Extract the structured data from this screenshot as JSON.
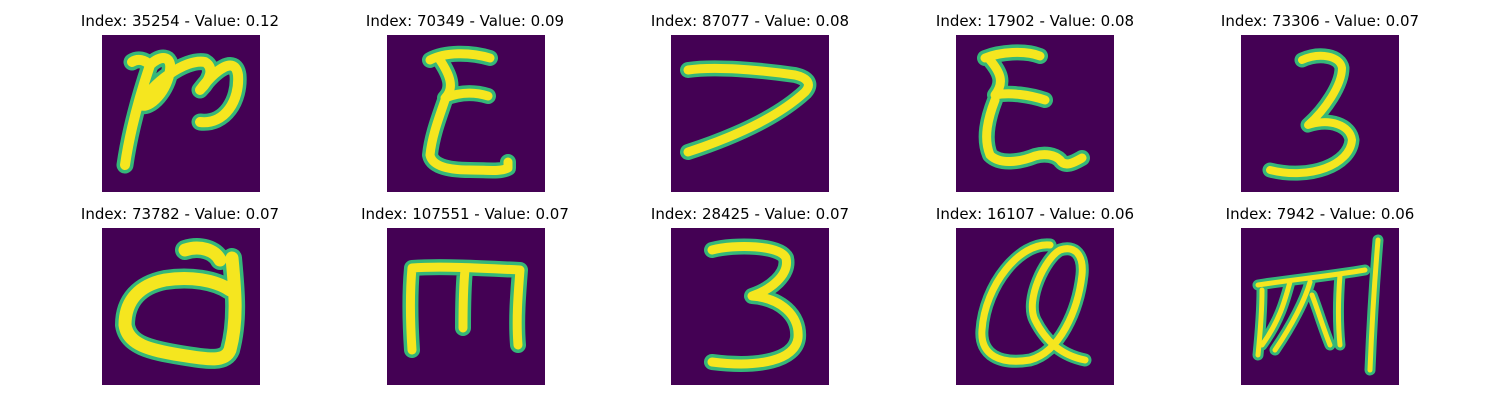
{
  "colors": {
    "background": "#440154",
    "stroke_core": "#f5e61f",
    "stroke_halo": "#35b779",
    "title_text": "#000000"
  },
  "panels": [
    {
      "index": "35254",
      "value": "0.12",
      "title": "Index: 35254 - Value: 0.12"
    },
    {
      "index": "70349",
      "value": "0.09",
      "title": "Index: 70349 - Value: 0.09"
    },
    {
      "index": "87077",
      "value": "0.08",
      "title": "Index: 87077 - Value: 0.08"
    },
    {
      "index": "17902",
      "value": "0.08",
      "title": "Index: 17902 - Value: 0.08"
    },
    {
      "index": "73306",
      "value": "0.07",
      "title": "Index: 73306 - Value: 0.07"
    },
    {
      "index": "73782",
      "value": "0.07",
      "title": "Index: 73782 - Value: 0.07"
    },
    {
      "index": "107551",
      "value": "0.07",
      "title": "Index: 107551 - Value: 0.07"
    },
    {
      "index": "28425",
      "value": "0.07",
      "title": "Index: 28425 - Value: 0.07"
    },
    {
      "index": "16107",
      "value": "0.06",
      "title": "Index: 16107 - Value: 0.06"
    },
    {
      "index": "7942",
      "value": "0.06",
      "title": "Index: 7942 - Value: 0.06"
    }
  ]
}
